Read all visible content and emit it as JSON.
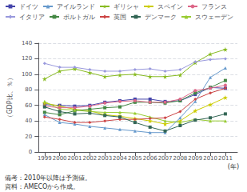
{
  "chart_data": {
    "type": "line",
    "y_label": "（GDP比、％）",
    "annotations": [
      "(年)",
      "備考：2010年以降は予測値。",
      "資料：AMECOから作成。"
    ],
    "x": [
      1999,
      2000,
      2001,
      2002,
      2003,
      2004,
      2005,
      2006,
      2007,
      2008,
      2009,
      2010,
      2011
    ],
    "xlim": [
      1998.6,
      2011.8
    ],
    "xticks": [
      1999,
      2000,
      2001,
      2002,
      2003,
      2004,
      2005,
      2006,
      2007,
      2008,
      2009,
      2010,
      2011
    ],
    "ylim": [
      0,
      140
    ],
    "yticks": [
      0,
      20,
      40,
      60,
      80,
      100,
      120,
      140
    ],
    "grid": true,
    "legend": "top",
    "legend_order": [
      "ドイツ",
      "アイルランド",
      "ギリシャ",
      "スペイン",
      "フランス",
      "イタリア",
      "ポルトガル",
      "英国",
      "デンマーク",
      "スウェーデン"
    ],
    "series": [
      {
        "name": "ドイツ",
        "color": "#4444aa",
        "marker": "square",
        "values": [
          61,
          60,
          59,
          60,
          64,
          66,
          68,
          68,
          65,
          66,
          74,
          83,
          82
        ]
      },
      {
        "name": "スペイン",
        "color": "#cccc00",
        "marker": "star",
        "values": [
          63,
          59,
          55,
          53,
          48,
          46,
          43,
          40,
          36,
          40,
          53,
          61,
          70
        ]
      },
      {
        "name": "ポルトガル",
        "color": "#448844",
        "marker": "square",
        "values": [
          51,
          48,
          53,
          55,
          57,
          58,
          64,
          64,
          63,
          66,
          76,
          83,
          92
        ]
      },
      {
        "name": "スウェーデン",
        "color": "#99cc33",
        "marker": "triangle",
        "values": [
          65,
          55,
          54,
          52,
          51,
          51,
          50,
          45,
          40,
          38,
          42,
          40,
          40
        ]
      },
      {
        "name": "アイルランド",
        "color": "#6699cc",
        "marker": "triangle",
        "values": [
          48,
          38,
          36,
          33,
          31,
          29,
          27,
          25,
          25,
          44,
          65,
          96,
          108
        ]
      },
      {
        "name": "フランス",
        "color": "#dd6688",
        "marker": "circle",
        "values": [
          59,
          57,
          57,
          59,
          63,
          65,
          66,
          64,
          64,
          68,
          79,
          82,
          86
        ]
      },
      {
        "name": "英国",
        "color": "#cc4444",
        "marker": "diamond",
        "values": [
          45,
          42,
          38,
          38,
          40,
          42,
          42,
          43,
          44,
          52,
          68,
          76,
          82
        ]
      },
      {
        "name": "ギリシャ",
        "color": "#88bb22",
        "marker": "star",
        "values": [
          94,
          104,
          107,
          102,
          97,
          99,
          100,
          97,
          97,
          99,
          115,
          126,
          132
        ]
      },
      {
        "name": "イタリア",
        "color": "#9999dd",
        "marker": "diamond",
        "values": [
          114,
          109,
          109,
          106,
          104,
          104,
          106,
          107,
          104,
          106,
          116,
          119,
          120
        ]
      },
      {
        "name": "デンマーク",
        "color": "#336655",
        "marker": "square",
        "values": [
          58,
          52,
          49,
          50,
          47,
          45,
          38,
          32,
          27,
          34,
          41,
          44,
          49
        ]
      }
    ]
  }
}
